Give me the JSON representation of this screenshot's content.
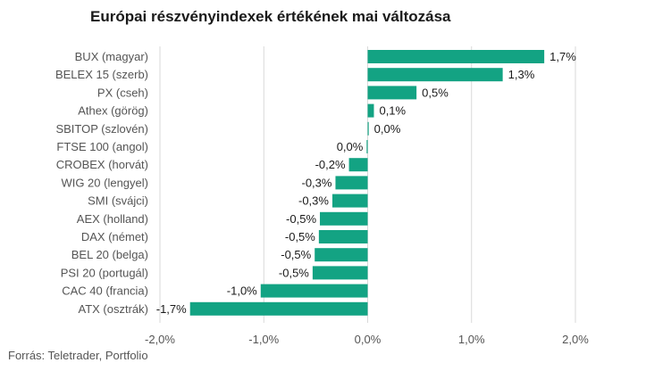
{
  "chart_data": {
    "type": "bar",
    "orientation": "horizontal",
    "title": "Európai részvényindexek értékének mai változása",
    "source": "Forrás: Teletrader, Portfolio",
    "categories": [
      "BUX (magyar)",
      "BELEX 15 (szerb)",
      "PX (cseh)",
      "Athex (görög)",
      "SBITOP (szlovén)",
      "FTSE 100 (angol)",
      "CROBEX (horvát)",
      "WIG 20 (lengyel)",
      "SMI (svájci)",
      "AEX (holland)",
      "DAX (német)",
      "BEL 20 (belga)",
      "PSI 20 (portugál)",
      "CAC 40 (francia)",
      "ATX (osztrák)"
    ],
    "values": [
      1.7,
      1.3,
      0.47,
      0.06,
      0.01,
      -0.01,
      -0.18,
      -0.31,
      -0.34,
      -0.46,
      -0.47,
      -0.51,
      -0.53,
      -1.03,
      -1.71
    ],
    "value_labels": [
      "1,7%",
      "1,3%",
      "0,5%",
      "0,1%",
      "0,0%",
      "0,0%",
      "-0,2%",
      "-0,3%",
      "-0,3%",
      "-0,5%",
      "-0,5%",
      "-0,5%",
      "-0,5%",
      "-1,0%",
      "-1,7%"
    ],
    "xlim": [
      -2.0,
      2.0
    ],
    "x_ticks": [
      -2.0,
      -1.0,
      0.0,
      1.0,
      2.0
    ],
    "x_tick_labels": [
      "-2,0%",
      "-1,0%",
      "0,0%",
      "1,0%",
      "2,0%"
    ],
    "grid": "vertical",
    "bar_color": "#13a383",
    "grid_color": "#d9d9d9"
  }
}
